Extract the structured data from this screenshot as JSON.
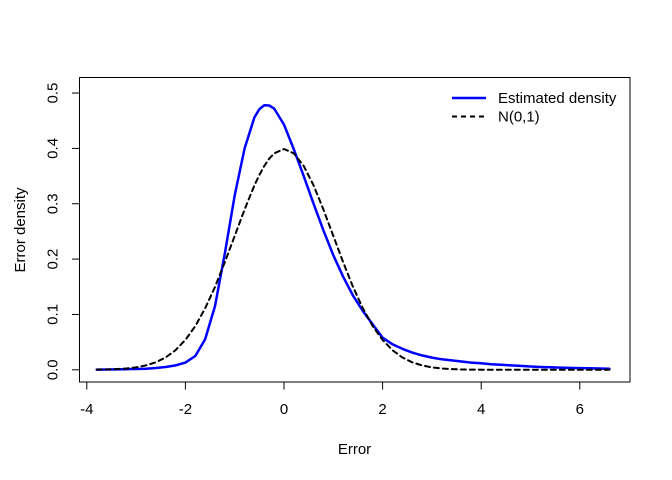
{
  "chart_data": {
    "type": "line",
    "title": "",
    "xlabel": "Error",
    "ylabel": "Error density",
    "x_ticks": [
      -4,
      -2,
      0,
      2,
      4,
      6
    ],
    "y_ticks": [
      0.0,
      0.1,
      0.2,
      0.3,
      0.4,
      0.5
    ],
    "y_tick_labels": [
      "0.0",
      "0.1",
      "0.2",
      "0.3",
      "0.4",
      "0.5"
    ],
    "xlim": [
      -4.16,
      7.0
    ],
    "ylim": [
      -0.022,
      0.528
    ],
    "grid": false,
    "legend_position": "topright",
    "background_color": "#ffffff",
    "axis_color": "#000000",
    "x": [
      -3.8,
      -3.6,
      -3.4,
      -3.2,
      -3.0,
      -2.8,
      -2.6,
      -2.4,
      -2.2,
      -2.0,
      -1.8,
      -1.6,
      -1.4,
      -1.2,
      -1.0,
      -0.8,
      -0.6,
      -0.5,
      -0.4,
      -0.3,
      -0.2,
      0.0,
      0.2,
      0.4,
      0.6,
      0.8,
      1.0,
      1.2,
      1.4,
      1.6,
      1.8,
      2.0,
      2.2,
      2.4,
      2.6,
      2.8,
      3.0,
      3.2,
      3.4,
      3.6,
      3.8,
      4.0,
      4.2,
      4.4,
      4.6,
      4.8,
      5.0,
      5.2,
      5.4,
      5.6,
      5.8,
      6.0,
      6.2,
      6.4,
      6.6
    ],
    "series": [
      {
        "name": "Estimated density",
        "color": "#0000ff",
        "linestyle": "solid",
        "width": 2.5,
        "values": [
          0.0004,
          0.0005,
          0.0007,
          0.001,
          0.0014,
          0.002,
          0.0032,
          0.005,
          0.008,
          0.013,
          0.025,
          0.055,
          0.115,
          0.21,
          0.315,
          0.4,
          0.456,
          0.471,
          0.478,
          0.4775,
          0.472,
          0.443,
          0.398,
          0.35,
          0.3,
          0.252,
          0.207,
          0.168,
          0.134,
          0.106,
          0.082,
          0.058,
          0.046,
          0.038,
          0.031,
          0.026,
          0.022,
          0.019,
          0.017,
          0.015,
          0.013,
          0.012,
          0.01,
          0.009,
          0.008,
          0.007,
          0.006,
          0.005,
          0.0045,
          0.004,
          0.0035,
          0.003,
          0.0027,
          0.0024,
          0.002
        ]
      },
      {
        "name": "N(0,1)",
        "color": "#000000",
        "linestyle": "dashed",
        "width": 2,
        "values": [
          0.0003,
          0.0006,
          0.0012,
          0.0024,
          0.0044,
          0.0079,
          0.0136,
          0.0224,
          0.0355,
          0.054,
          0.0789,
          0.1109,
          0.1497,
          0.1942,
          0.242,
          0.2897,
          0.3332,
          0.3521,
          0.3683,
          0.3814,
          0.391,
          0.3989,
          0.391,
          0.3683,
          0.3332,
          0.2897,
          0.242,
          0.1942,
          0.1497,
          0.1109,
          0.0789,
          0.054,
          0.0355,
          0.0224,
          0.0136,
          0.0079,
          0.0044,
          0.0024,
          0.0012,
          0.0006,
          0.0003,
          0.0001,
          0.0001,
          0,
          0,
          0,
          0,
          0,
          0,
          0,
          0,
          0,
          0,
          0,
          0
        ]
      }
    ]
  }
}
